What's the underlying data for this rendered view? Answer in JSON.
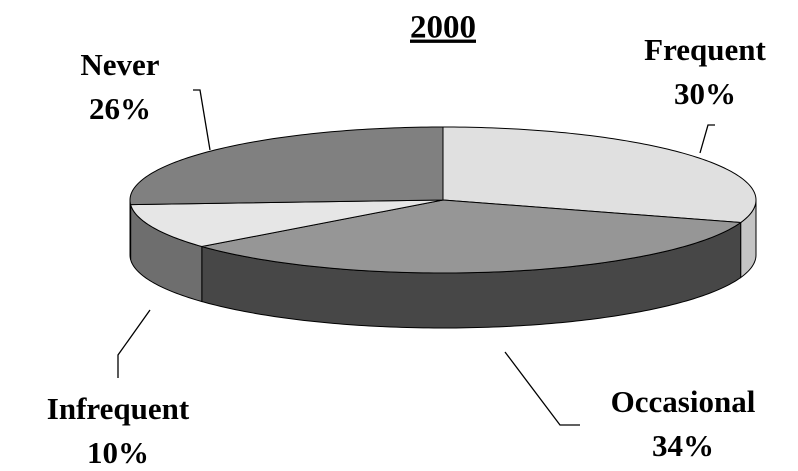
{
  "chart_data": {
    "type": "pie",
    "title": "2000",
    "categories": [
      "Frequent",
      "Occasional",
      "Infrequent",
      "Never"
    ],
    "values": [
      30,
      34,
      10,
      26
    ],
    "value_labels": [
      "30%",
      "34%",
      "10%",
      "26%"
    ],
    "colors": [
      "#e0e0e0",
      "#969696",
      "#e6e6e6",
      "#808080"
    ],
    "side_colors": [
      "#c4c4c4",
      "#474747",
      "#6e6e6e",
      "#5a5a5a"
    ]
  }
}
